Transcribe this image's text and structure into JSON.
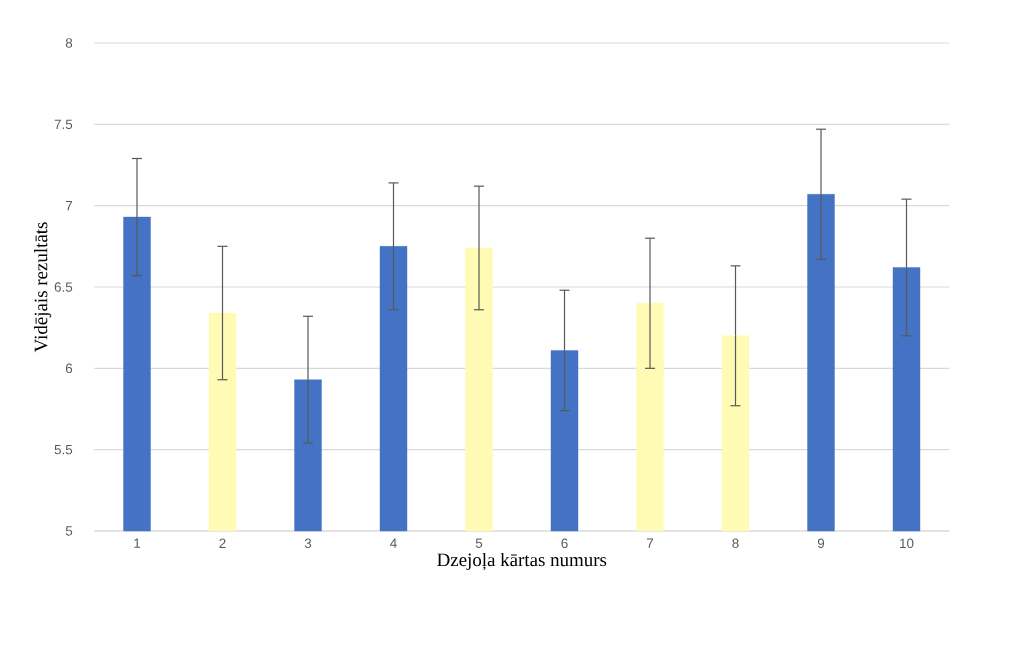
{
  "chart_data": {
    "type": "bar",
    "xlabel": "Dzejoļa kārtas numurs",
    "ylabel": "Vidējais rezultāts",
    "categories": [
      "1",
      "2",
      "3",
      "4",
      "5",
      "6",
      "7",
      "8",
      "9",
      "10"
    ],
    "values": [
      6.93,
      6.34,
      5.93,
      6.75,
      6.74,
      6.11,
      6.4,
      6.2,
      7.07,
      6.62
    ],
    "errors": [
      0.36,
      0.41,
      0.39,
      0.39,
      0.38,
      0.37,
      0.4,
      0.43,
      0.4,
      0.42
    ],
    "colors": [
      "#4472c4",
      "#fffab4",
      "#4472c4",
      "#4472c4",
      "#fffab4",
      "#4472c4",
      "#fffab4",
      "#fffab4",
      "#4472c4",
      "#4472c4"
    ],
    "ylim": [
      5,
      8
    ],
    "yticks": [
      5,
      5.5,
      6,
      6.5,
      7,
      7.5,
      8
    ],
    "grid": "y"
  }
}
